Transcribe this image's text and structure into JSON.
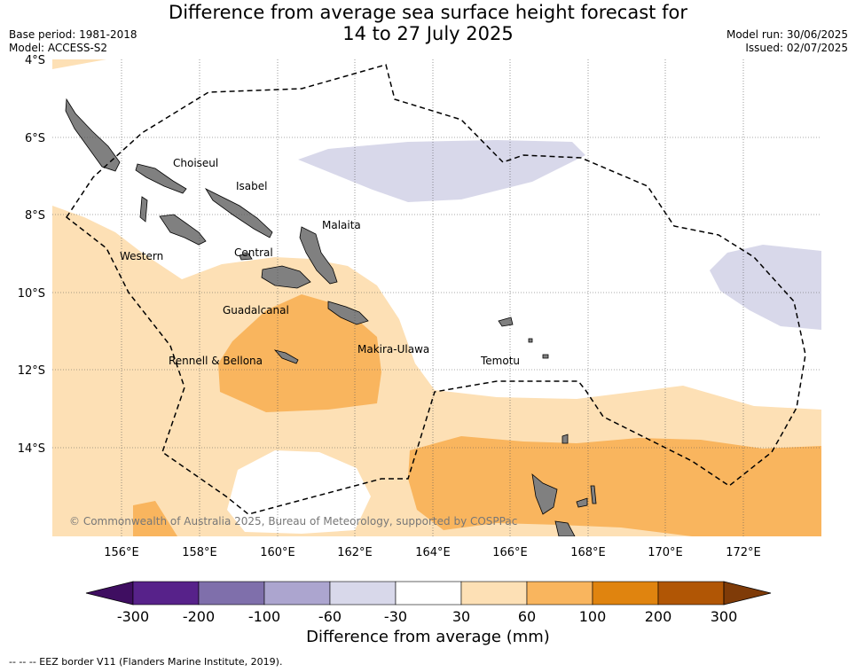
{
  "header": {
    "title_line1": "Difference from average sea surface height forecast for",
    "title_line2": "14 to 27 July 2025",
    "base_period": "Base period: 1981-2018",
    "model": "Model: ACCESS-S2",
    "model_run": "Model run: 30/06/2025",
    "issued": "Issued: 02/07/2025"
  },
  "map": {
    "lat_labels": [
      "4°S",
      "6°S",
      "8°S",
      "10°S",
      "12°S",
      "14°S"
    ],
    "lon_labels": [
      "156°E",
      "158°E",
      "160°E",
      "162°E",
      "164°E",
      "166°E",
      "168°E",
      "170°E",
      "172°E"
    ],
    "province_labels": [
      "Choiseul",
      "Isabel",
      "Malaita",
      "Western",
      "Central",
      "Guadalcanal",
      "Makira-Ulawa",
      "Rennell & Bellona",
      "Temotu"
    ],
    "copyright": "© Commonwealth of Australia 2025, Bureau of Meteorology, supported by COSPPac"
  },
  "colorbar": {
    "title": "Difference from average (mm)",
    "ticks": [
      "-300",
      "-200",
      "-100",
      "-60",
      "-30",
      "30",
      "60",
      "100",
      "200",
      "300"
    ],
    "colors": [
      "#3f0e61",
      "#57228a",
      "#7f6fab",
      "#aca5cf",
      "#d8d8ea",
      "#ffffff",
      "#fde0b5",
      "#f9b55e",
      "#e0840f",
      "#b15605",
      "#7f3b08"
    ]
  },
  "legend_note": "--  --  -- EEZ border V11 (Flanders Marine Institute, 2019)."
}
